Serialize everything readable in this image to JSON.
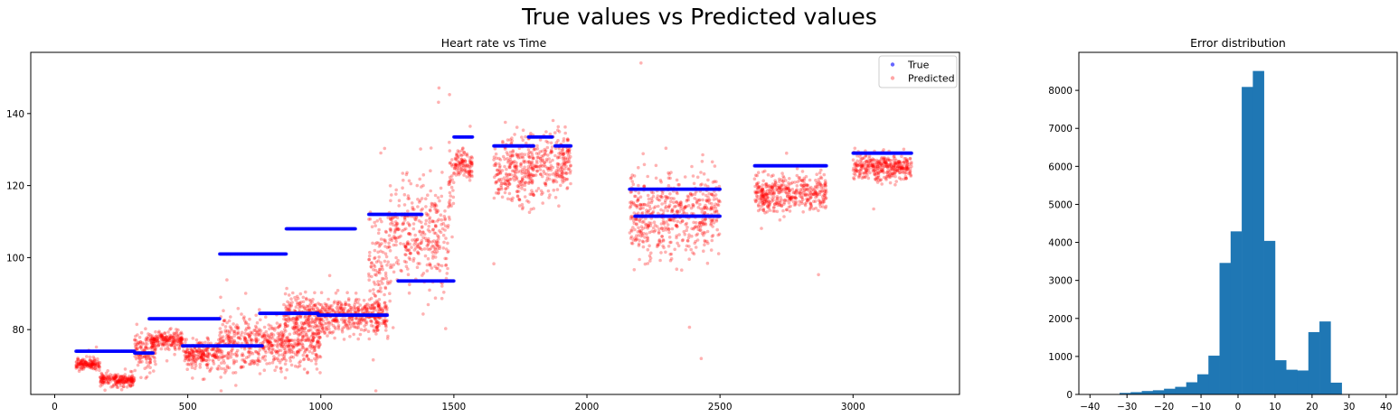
{
  "figure": {
    "title": "True values vs Predicted values"
  },
  "colors": {
    "true": "#0000ff",
    "predicted": "#ff0000",
    "hist": "#1f77b4"
  },
  "chart_data": [
    {
      "type": "scatter",
      "title": "Heart rate vs Time",
      "xlabel": "",
      "ylabel": "",
      "xlim": [
        -90,
        3400
      ],
      "ylim": [
        62,
        157
      ],
      "xticks": [
        0,
        500,
        1000,
        1500,
        2000,
        2500,
        3000
      ],
      "yticks": [
        80,
        100,
        120,
        140
      ],
      "legend": {
        "position": "top-right",
        "entries": [
          "True",
          "Predicted"
        ]
      },
      "series": [
        {
          "name": "True",
          "segments": [
            {
              "x": [
                80,
                300
              ],
              "y": 74
            },
            {
              "x": [
                300,
                370
              ],
              "y": 73.5
            },
            {
              "x": [
                355,
                620
              ],
              "y": 83
            },
            {
              "x": [
                480,
                780
              ],
              "y": 75.5
            },
            {
              "x": [
                620,
                870
              ],
              "y": 101
            },
            {
              "x": [
                770,
                990
              ],
              "y": 84.5
            },
            {
              "x": [
                870,
                1130
              ],
              "y": 108
            },
            {
              "x": [
                990,
                1250
              ],
              "y": 84
            },
            {
              "x": [
                1180,
                1380
              ],
              "y": 112
            },
            {
              "x": [
                1290,
                1500
              ],
              "y": 93.5
            },
            {
              "x": [
                1500,
                1570
              ],
              "y": 133.5
            },
            {
              "x": [
                1650,
                1800
              ],
              "y": 131
            },
            {
              "x": [
                1780,
                1870
              ],
              "y": 133.5
            },
            {
              "x": [
                1880,
                1940
              ],
              "y": 131
            },
            {
              "x": [
                2160,
                2500
              ],
              "y": 119
            },
            {
              "x": [
                2180,
                2500
              ],
              "y": 111.5
            },
            {
              "x": [
                2630,
                2900
              ],
              "y": 125.5
            },
            {
              "x": [
                3000,
                3220
              ],
              "y": 129
            }
          ]
        },
        {
          "name": "Predicted",
          "clusters": [
            {
              "x": [
                80,
                170
              ],
              "y": 70.5,
              "spread": 0.8
            },
            {
              "x": [
                170,
                300
              ],
              "y": 66,
              "spread": 0.8
            },
            {
              "x": [
                300,
                380
              ],
              "y": 74,
              "spread": 2.5
            },
            {
              "x": [
                360,
                480
              ],
              "y": 77,
              "spread": 1.2
            },
            {
              "x": [
                480,
                620
              ],
              "y": 73,
              "spread": 2
            },
            {
              "x": [
                620,
                780
              ],
              "y": 76,
              "spread": 4
            },
            {
              "x": [
                780,
                1000
              ],
              "y": 76,
              "spread": 3
            },
            {
              "x": [
                860,
                1250
              ],
              "y": 84,
              "spread": 2.5
            },
            {
              "x": [
                1180,
                1260
              ],
              "y": 97,
              "spread": 9
            },
            {
              "x": [
                1260,
                1380
              ],
              "y": 107,
              "spread": 7
            },
            {
              "x": [
                1380,
                1480
              ],
              "y": 105,
              "spread": 8
            },
            {
              "x": [
                1480,
                1500
              ],
              "y": 120,
              "spread": 6
            },
            {
              "x": [
                1500,
                1570
              ],
              "y": 126,
              "spread": 2
            },
            {
              "x": [
                1650,
                1800
              ],
              "y": 124,
              "spread": 5
            },
            {
              "x": [
                1780,
                1940
              ],
              "y": 126,
              "spread": 4
            },
            {
              "x": [
                2160,
                2500
              ],
              "y": 112,
              "spread": 6
            },
            {
              "x": [
                2630,
                2900
              ],
              "y": 118,
              "spread": 2.5
            },
            {
              "x": [
                3000,
                3220
              ],
              "y": 125,
              "spread": 1.8
            }
          ]
        }
      ]
    },
    {
      "type": "bar",
      "title": "Error distribution",
      "xlabel": "",
      "ylabel": "",
      "xlim": [
        -43,
        43
      ],
      "ylim": [
        0,
        9000
      ],
      "xticks": [
        -40,
        -30,
        -20,
        -10,
        0,
        10,
        20,
        30,
        40
      ],
      "yticks": [
        0,
        1000,
        2000,
        3000,
        4000,
        5000,
        6000,
        7000,
        8000
      ],
      "bin_edges": [
        -35,
        -32,
        -29,
        -26,
        -23,
        -20,
        -17,
        -14,
        -11,
        -8,
        -5,
        -2,
        1,
        4,
        7,
        10,
        13,
        16,
        19,
        22,
        25,
        28,
        31
      ],
      "values": [
        10,
        40,
        60,
        90,
        110,
        150,
        200,
        320,
        530,
        1020,
        3460,
        4290,
        8090,
        8510,
        4040,
        900,
        650,
        630,
        1640,
        1920,
        310,
        0
      ]
    }
  ]
}
